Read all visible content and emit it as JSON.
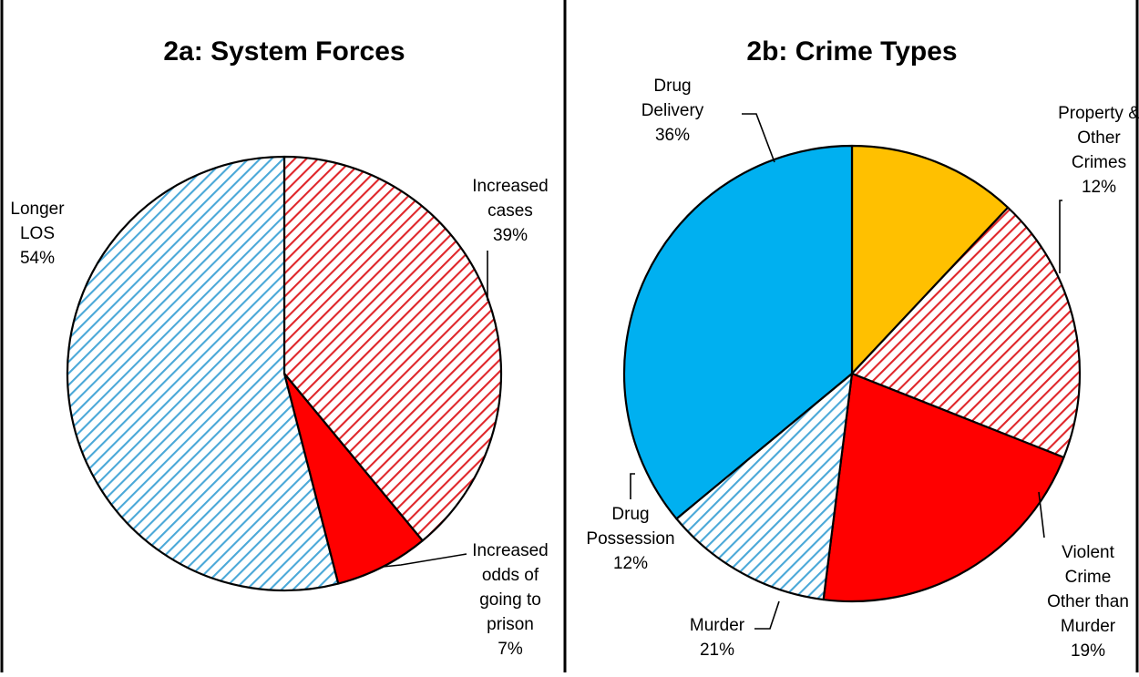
{
  "colors": {
    "hatch_blue": "#4aa8d8",
    "hatch_red": "#e0262a",
    "solid_red": "#ff0000",
    "solid_blue": "#00b0f0",
    "solid_gold": "#ffc000"
  },
  "chart_data": [
    {
      "type": "pie",
      "title": "2a: System Forces",
      "slices": [
        {
          "label_lines": [
            "Increased",
            "cases",
            "39%"
          ],
          "value": 39,
          "fill": "hatch-red"
        },
        {
          "label_lines": [
            "Increased",
            "odds of",
            "going to",
            "prison",
            "7%"
          ],
          "value": 7,
          "fill": "solid-red"
        },
        {
          "label_lines": [
            "Longer",
            "LOS",
            "54%"
          ],
          "value": 54,
          "fill": "hatch-blue"
        }
      ]
    },
    {
      "type": "pie",
      "title": "2b: Crime Types",
      "slices": [
        {
          "label_lines": [
            "Property &",
            "Other",
            "Crimes",
            "12%"
          ],
          "value": 12,
          "fill": "solid-gold"
        },
        {
          "label_lines": [
            "Violent",
            "Crime",
            "Other than",
            "Murder",
            "19%"
          ],
          "value": 19,
          "fill": "hatch-red"
        },
        {
          "label_lines": [
            "Murder",
            "21%"
          ],
          "value": 21,
          "fill": "solid-red"
        },
        {
          "label_lines": [
            "Drug",
            "Possession",
            "12%"
          ],
          "value": 12,
          "fill": "hatch-blue"
        },
        {
          "label_lines": [
            "Drug",
            "Delivery",
            "36%"
          ],
          "value": 36,
          "fill": "solid-blue"
        }
      ]
    }
  ]
}
